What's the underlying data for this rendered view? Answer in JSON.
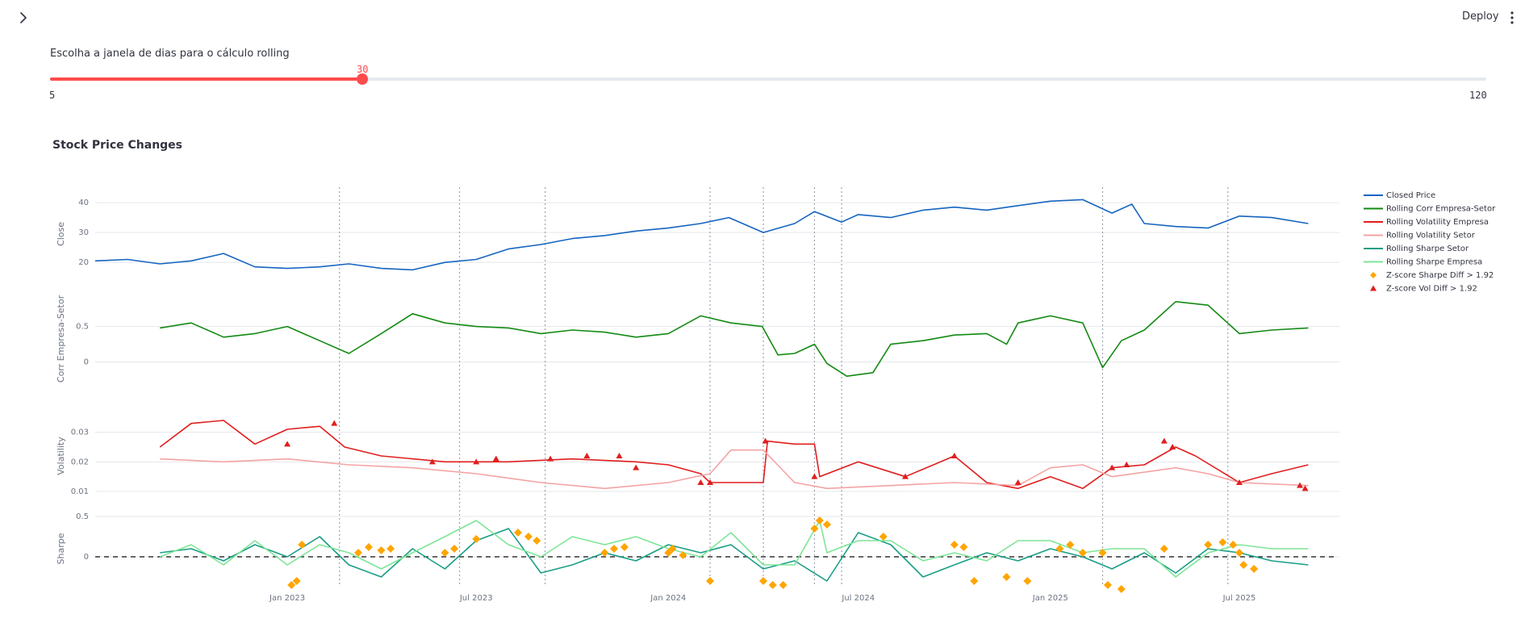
{
  "header": {
    "deploy_label": "Deploy",
    "sidebar_toggle_icon": "chevron-right-icon",
    "menu_icon": "kebab-menu-icon"
  },
  "slider": {
    "label": "Escolha a janela de dias para o cálculo rolling",
    "value": 30,
    "value_label": "30",
    "min": 5,
    "min_label": "5",
    "max": 120,
    "max_label": "120",
    "accent_color": "#ff4b4b"
  },
  "chart_title": "Stock Price Changes",
  "chart_data": {
    "type": "line",
    "x_ticks": [
      "Jan 2023",
      "Jul 2023",
      "Jan 2024",
      "Jul 2024",
      "Jan 2025",
      "Jul 2025"
    ],
    "x_range": [
      "2022-07-01",
      "2025-10-01"
    ],
    "vlines": [
      "2023-02-20",
      "2023-06-15",
      "2023-09-05",
      "2024-02-10",
      "2024-04-01",
      "2024-05-20",
      "2024-06-15",
      "2025-02-20",
      "2025-06-20"
    ],
    "legend_position": "right",
    "subplots": [
      {
        "ylabel": "Close",
        "yticks": [
          20,
          30,
          40
        ],
        "ylim": [
          16,
          43
        ],
        "series": [
          {
            "name": "Closed Price",
            "color": "#1565c0",
            "x": [
              "2022-07-01",
              "2022-08-01",
              "2022-09-01",
              "2022-10-01",
              "2022-11-01",
              "2022-12-01",
              "2023-01-01",
              "2023-02-01",
              "2023-03-01",
              "2023-04-01",
              "2023-05-01",
              "2023-06-01",
              "2023-07-01",
              "2023-08-01",
              "2023-09-01",
              "2023-10-01",
              "2023-11-01",
              "2023-12-01",
              "2024-01-01",
              "2024-02-01",
              "2024-02-28",
              "2024-04-01",
              "2024-05-01",
              "2024-05-20",
              "2024-06-15",
              "2024-07-01",
              "2024-08-01",
              "2024-09-01",
              "2024-10-01",
              "2024-11-01",
              "2024-12-01",
              "2025-01-01",
              "2025-02-01",
              "2025-03-01",
              "2025-03-20",
              "2025-04-01",
              "2025-05-01",
              "2025-06-01",
              "2025-07-01",
              "2025-08-01",
              "2025-09-05"
            ],
            "y": [
              20.5,
              21.0,
              19.5,
              20.5,
              23.0,
              18.5,
              18.0,
              18.5,
              19.5,
              18.0,
              17.5,
              20.0,
              21.0,
              24.5,
              26.0,
              28.0,
              29.0,
              30.5,
              31.5,
              33.0,
              35.0,
              30.0,
              33.0,
              37.0,
              33.5,
              36.0,
              35.0,
              37.5,
              38.5,
              37.5,
              39.0,
              40.5,
              41.0,
              36.5,
              39.5,
              33.0,
              32.0,
              31.5,
              35.5,
              35.0,
              33.0
            ]
          }
        ]
      },
      {
        "ylabel": "Corr Empresa-Setor",
        "yticks": [
          0,
          0.5
        ],
        "ylim": [
          -0.3,
          0.95
        ],
        "series": [
          {
            "name": "Rolling Corr Empresa-Setor",
            "color": "#138a13",
            "x": [
              "2022-09-01",
              "2022-10-01",
              "2022-11-01",
              "2022-12-01",
              "2023-01-01",
              "2023-02-01",
              "2023-03-01",
              "2023-04-01",
              "2023-05-01",
              "2023-06-01",
              "2023-07-01",
              "2023-08-01",
              "2023-09-01",
              "2023-10-01",
              "2023-11-01",
              "2023-12-01",
              "2024-01-01",
              "2024-02-01",
              "2024-03-01",
              "2024-03-31",
              "2024-04-15",
              "2024-05-01",
              "2024-05-20",
              "2024-06-01",
              "2024-06-20",
              "2024-07-15",
              "2024-08-01",
              "2024-09-01",
              "2024-10-01",
              "2024-11-01",
              "2024-11-20",
              "2024-12-01",
              "2025-01-01",
              "2025-02-01",
              "2025-02-20",
              "2025-03-10",
              "2025-04-01",
              "2025-05-01",
              "2025-06-01",
              "2025-07-01",
              "2025-08-01",
              "2025-09-05"
            ],
            "y": [
              0.48,
              0.55,
              0.35,
              0.4,
              0.5,
              0.3,
              0.12,
              0.4,
              0.68,
              0.55,
              0.5,
              0.48,
              0.4,
              0.45,
              0.42,
              0.35,
              0.4,
              0.65,
              0.55,
              0.5,
              0.1,
              0.12,
              0.25,
              -0.02,
              -0.2,
              -0.15,
              0.25,
              0.3,
              0.38,
              0.4,
              0.25,
              0.55,
              0.65,
              0.55,
              -0.08,
              0.3,
              0.45,
              0.85,
              0.8,
              0.4,
              0.45,
              0.48
            ]
          }
        ]
      },
      {
        "ylabel": "Volatility",
        "yticks": [
          0.01,
          0.02,
          0.03
        ],
        "ylim": [
          0.007,
          0.037
        ],
        "series": [
          {
            "name": "Rolling Volatility Empresa",
            "color": "#e01e1e",
            "x": [
              "2022-09-01",
              "2022-10-01",
              "2022-11-01",
              "2022-12-01",
              "2023-01-01",
              "2023-02-01",
              "2023-02-25",
              "2023-04-01",
              "2023-06-01",
              "2023-08-01",
              "2023-10-01",
              "2023-12-01",
              "2024-01-01",
              "2024-02-01",
              "2024-02-10",
              "2024-04-01",
              "2024-04-05",
              "2024-05-01",
              "2024-05-20",
              "2024-05-25",
              "2024-07-01",
              "2024-08-15",
              "2024-10-01",
              "2024-11-01",
              "2024-12-01",
              "2025-01-01",
              "2025-02-01",
              "2025-03-01",
              "2025-04-01",
              "2025-05-01",
              "2025-05-20",
              "2025-07-01",
              "2025-08-01",
              "2025-09-05"
            ],
            "y": [
              0.025,
              0.033,
              0.034,
              0.026,
              0.031,
              0.032,
              0.025,
              0.022,
              0.02,
              0.02,
              0.021,
              0.02,
              0.019,
              0.016,
              0.013,
              0.013,
              0.027,
              0.026,
              0.026,
              0.015,
              0.02,
              0.015,
              0.022,
              0.013,
              0.011,
              0.015,
              0.011,
              0.018,
              0.019,
              0.025,
              0.022,
              0.013,
              0.016,
              0.019
            ]
          },
          {
            "name": "Rolling Volatility Setor",
            "color": "#f4a3a3",
            "x": [
              "2022-09-01",
              "2022-11-01",
              "2023-01-01",
              "2023-03-01",
              "2023-05-01",
              "2023-07-01",
              "2023-09-01",
              "2023-11-01",
              "2024-01-01",
              "2024-02-10",
              "2024-03-01",
              "2024-04-01",
              "2024-05-01",
              "2024-06-01",
              "2024-08-01",
              "2024-10-01",
              "2024-12-01",
              "2025-01-01",
              "2025-02-01",
              "2025-03-01",
              "2025-05-01",
              "2025-06-01",
              "2025-07-01",
              "2025-09-05"
            ],
            "y": [
              0.021,
              0.02,
              0.021,
              0.019,
              0.018,
              0.016,
              0.013,
              0.011,
              0.013,
              0.016,
              0.024,
              0.024,
              0.013,
              0.011,
              0.012,
              0.013,
              0.012,
              0.018,
              0.019,
              0.015,
              0.018,
              0.016,
              0.013,
              0.012
            ]
          }
        ]
      },
      {
        "ylabel": "Sharpe",
        "yticks": [
          0,
          0.5
        ],
        "ylim": [
          -0.45,
          0.65
        ],
        "zero_line": true,
        "series": [
          {
            "name": "Rolling Sharpe Setor",
            "color": "#1a9e86",
            "x": [
              "2022-09-01",
              "2022-10-01",
              "2022-11-01",
              "2022-12-01",
              "2023-01-01",
              "2023-02-01",
              "2023-03-01",
              "2023-04-01",
              "2023-05-01",
              "2023-06-01",
              "2023-07-01",
              "2023-08-01",
              "2023-09-01",
              "2023-10-01",
              "2023-11-01",
              "2023-12-01",
              "2024-01-01",
              "2024-02-01",
              "2024-03-01",
              "2024-04-01",
              "2024-05-01",
              "2024-06-01",
              "2024-07-01",
              "2024-08-01",
              "2024-09-01",
              "2024-10-01",
              "2024-11-01",
              "2024-12-01",
              "2025-01-01",
              "2025-02-01",
              "2025-03-01",
              "2025-04-01",
              "2025-05-01",
              "2025-06-01",
              "2025-07-01",
              "2025-08-01",
              "2025-09-05"
            ],
            "y": [
              0.05,
              0.1,
              -0.05,
              0.15,
              0.0,
              0.25,
              -0.1,
              -0.25,
              0.1,
              -0.15,
              0.2,
              0.35,
              -0.2,
              -0.1,
              0.05,
              -0.05,
              0.15,
              0.05,
              0.15,
              -0.15,
              -0.05,
              -0.3,
              0.3,
              0.15,
              -0.25,
              -0.1,
              0.05,
              -0.05,
              0.1,
              0.0,
              -0.15,
              0.05,
              -0.2,
              0.1,
              0.05,
              -0.05,
              -0.1
            ]
          },
          {
            "name": "Rolling Sharpe Empresa",
            "color": "#7ee597",
            "x": [
              "2022-09-01",
              "2022-10-01",
              "2022-11-01",
              "2022-12-01",
              "2023-01-01",
              "2023-02-01",
              "2023-03-01",
              "2023-04-01",
              "2023-05-01",
              "2023-06-01",
              "2023-07-01",
              "2023-08-01",
              "2023-09-01",
              "2023-10-01",
              "2023-11-01",
              "2023-12-01",
              "2024-01-01",
              "2024-02-01",
              "2024-03-01",
              "2024-04-01",
              "2024-05-01",
              "2024-05-25",
              "2024-06-01",
              "2024-07-01",
              "2024-08-01",
              "2024-09-01",
              "2024-10-01",
              "2024-11-01",
              "2024-12-01",
              "2025-01-01",
              "2025-02-01",
              "2025-03-01",
              "2025-04-01",
              "2025-05-01",
              "2025-06-01",
              "2025-07-01",
              "2025-08-01",
              "2025-09-05"
            ],
            "y": [
              0.0,
              0.15,
              -0.1,
              0.2,
              -0.1,
              0.15,
              0.05,
              -0.15,
              0.05,
              0.25,
              0.45,
              0.15,
              0.0,
              0.25,
              0.15,
              0.25,
              0.1,
              0.0,
              0.3,
              -0.1,
              -0.1,
              0.45,
              0.05,
              0.2,
              0.2,
              -0.05,
              0.05,
              -0.05,
              0.2,
              0.2,
              0.05,
              0.1,
              0.1,
              -0.25,
              0.05,
              0.15,
              0.1,
              0.1
            ]
          }
        ]
      }
    ],
    "markers": [
      {
        "name": "Z-score Sharpe Diff > 1.92",
        "color": "#ffa500",
        "shape": "diamond",
        "subplot": 3,
        "x": [
          "2023-01-05",
          "2023-01-10",
          "2023-01-15",
          "2023-03-10",
          "2023-03-20",
          "2023-04-01",
          "2023-04-10",
          "2023-06-01",
          "2023-06-10",
          "2023-07-01",
          "2023-08-10",
          "2023-08-20",
          "2023-08-28",
          "2023-11-01",
          "2023-11-10",
          "2023-11-20",
          "2024-01-01",
          "2024-01-05",
          "2024-01-15",
          "2024-02-10",
          "2024-04-01",
          "2024-04-10",
          "2024-04-20",
          "2024-05-20",
          "2024-05-25",
          "2024-06-01",
          "2024-07-25",
          "2024-10-01",
          "2024-10-10",
          "2024-10-20",
          "2024-11-20",
          "2024-12-10",
          "2025-01-10",
          "2025-01-20",
          "2025-02-01",
          "2025-02-20",
          "2025-02-25",
          "2025-03-10",
          "2025-04-20",
          "2025-06-01",
          "2025-06-15",
          "2025-06-25",
          "2025-07-01",
          "2025-07-05",
          "2025-07-15"
        ],
        "y": [
          -0.35,
          -0.3,
          0.15,
          0.05,
          0.12,
          0.08,
          0.1,
          0.05,
          0.1,
          0.22,
          0.3,
          0.25,
          0.2,
          0.05,
          0.1,
          0.12,
          0.05,
          0.1,
          0.02,
          -0.3,
          -0.3,
          -0.35,
          -0.35,
          0.35,
          0.45,
          0.4,
          0.25,
          0.15,
          0.12,
          -0.3,
          -0.25,
          -0.3,
          0.1,
          0.15,
          0.05,
          0.05,
          -0.35,
          -0.4,
          0.1,
          0.15,
          0.18,
          0.15,
          0.05,
          -0.1,
          -0.15
        ]
      },
      {
        "name": "Z-score Vol Diff > 1.92",
        "color": "#e01e1e",
        "shape": "triangle-up",
        "subplot": 2,
        "x": [
          "2023-01-01",
          "2023-02-15",
          "2023-05-20",
          "2023-07-01",
          "2023-07-20",
          "2023-09-10",
          "2023-10-15",
          "2023-11-15",
          "2023-12-01",
          "2024-02-01",
          "2024-02-10",
          "2024-04-03",
          "2024-05-20",
          "2024-08-15",
          "2024-10-01",
          "2024-12-01",
          "2025-03-01",
          "2025-03-15",
          "2025-04-20",
          "2025-04-28",
          "2025-07-01",
          "2025-08-28",
          "2025-09-02"
        ],
        "y": [
          0.026,
          0.033,
          0.02,
          0.02,
          0.021,
          0.021,
          0.022,
          0.022,
          0.018,
          0.013,
          0.013,
          0.027,
          0.015,
          0.015,
          0.022,
          0.013,
          0.018,
          0.019,
          0.027,
          0.025,
          0.013,
          0.012,
          0.011
        ]
      }
    ]
  }
}
